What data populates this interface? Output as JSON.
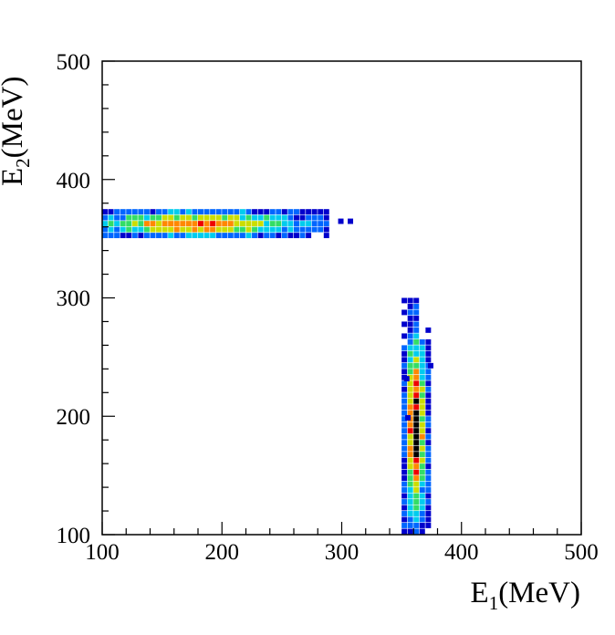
{
  "chart_data": {
    "type": "heatmap",
    "title": "",
    "xlabel": {
      "base": "E",
      "sub": "1",
      "unit": "(MeV)"
    },
    "ylabel": {
      "base": "E",
      "sub": "2",
      "unit": "(MeV)"
    },
    "xlim": [
      100,
      500
    ],
    "ylim": [
      100,
      500
    ],
    "xticks": [
      "100",
      "200",
      "300",
      "400",
      "500"
    ],
    "yticks": [
      "100",
      "200",
      "300",
      "400",
      "500"
    ],
    "grid": false,
    "colorscale": [
      "#0000cc",
      "#0066ff",
      "#00ccee",
      "#33dd66",
      "#ccdd00",
      "#ff8800",
      "#ee0000",
      "#000000"
    ],
    "bin_width": 5,
    "clusters": [
      {
        "name": "horizontal-band",
        "x_range": [
          100,
          290
        ],
        "y_range": [
          350,
          375
        ],
        "center_y": 362,
        "peak_x": 180,
        "peak_intensity": 0.75
      },
      {
        "name": "vertical-band",
        "x_range": [
          350,
          373
        ],
        "y_range": [
          100,
          300
        ],
        "center_x": 362,
        "peak_y": 190,
        "peak_intensity": 0.95
      }
    ],
    "outlier_bins": [
      [
        305,
        362
      ],
      [
        297,
        362
      ],
      [
        372,
        240
      ],
      [
        352,
        229
      ],
      [
        353,
        196
      ]
    ]
  }
}
